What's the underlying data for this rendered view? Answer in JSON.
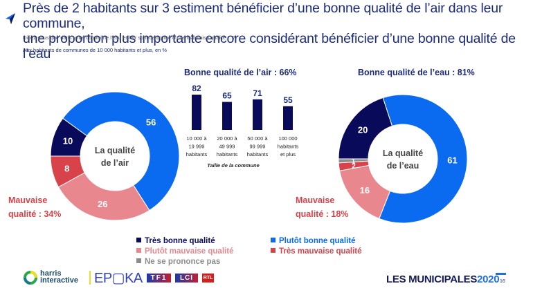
{
  "header": {
    "title_line1": "Près de 2 habitants sur 3 estiment bénéficier d’une bonne qualité de l’air dans leur commune,",
    "title_line2": "une proportion plus importante encore considérant bénéficier d’une bonne qualité de l’eau",
    "question": "Diriez-vous que dans votre commune l’eau et l’air sont de bonne ou de mauvaise qualité… ?",
    "base": "Aux habitants de communes de 10 000 habitants et plus, en %",
    "icon": "arrow-pointer-icon"
  },
  "colors": {
    "tres_bonne": "#0a0a5a",
    "plutot_bonne": "#0a6af0",
    "plutot_mauvaise": "#e8888e",
    "tres_mauvaise": "#d8424a",
    "nsp": "#8c8c8c",
    "title": "#1b2b7a",
    "bad_text": "#d8424a"
  },
  "chart_data": [
    {
      "type": "pie",
      "variant": "donut",
      "center_label": [
        "La qualité",
        "de l’air"
      ],
      "categories": [
        "Très bonne qualité",
        "Plutôt bonne qualité",
        "Plutôt mauvaise qualité",
        "Très mauvaise qualité"
      ],
      "values": [
        10,
        56,
        26,
        8
      ],
      "summary_good": "Bonne qualité de l’air : 66%",
      "summary_bad": [
        "Mauvaise",
        "qualité : 34%"
      ]
    },
    {
      "type": "bar",
      "title": "Bonne qualité de l’air : 66%",
      "categories": [
        [
          "10 000 à",
          "19 999",
          "habitants"
        ],
        [
          "20 000 à",
          "49 999",
          "habitants"
        ],
        [
          "50 000 à",
          "99 999",
          "habitants"
        ],
        [
          "100 000",
          "habitants",
          "et plus"
        ]
      ],
      "values": [
        82,
        65,
        71,
        55
      ],
      "xlabel": "Taille de la commune",
      "ylabel": "",
      "ylim": [
        0,
        100
      ]
    },
    {
      "type": "pie",
      "variant": "donut",
      "center_label": [
        "La qualité",
        "de l’eau"
      ],
      "categories": [
        "Très bonne qualité",
        "Plutôt bonne qualité",
        "Plutôt mauvaise qualité",
        "Très mauvaise qualité",
        "Ne se prononce pas"
      ],
      "values": [
        20,
        61,
        16,
        2,
        1
      ],
      "summary_good": "Bonne qualité de l’eau : 81%",
      "summary_bad": [
        "Mauvaise",
        "qualité : 18%"
      ]
    }
  ],
  "legend": [
    {
      "label": "Très bonne qualité",
      "key": "tres_bonne"
    },
    {
      "label": "Plutôt bonne qualité",
      "key": "plutot_bonne"
    },
    {
      "label": "Plutôt mauvaise qualité",
      "key": "plutot_mauvaise"
    },
    {
      "label": "Très mauvaise qualité",
      "key": "tres_mauvaise"
    },
    {
      "label": "Ne se prononce pas",
      "key": "nsp"
    }
  ],
  "footer": {
    "harris_line1": "harris",
    "harris_line2": "interactive",
    "epoka": "EP▢KA",
    "tf1": "TF1",
    "lci": "LCI",
    "rtl": "RTL",
    "municipales": "LES MUNICIPALES",
    "year": "2020",
    "page": "16"
  }
}
